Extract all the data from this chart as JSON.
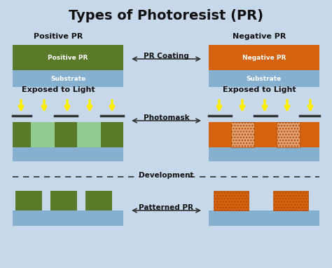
{
  "title": "Types of Photoresist (PR)",
  "background_color": "#c8d8eb",
  "title_fontsize": 14,
  "pos_pr_color": "#5a7a2a",
  "neg_pr_color": "#d4620e",
  "substrate_color": "#85b0d0",
  "exposed_pos_color": "#90cc90",
  "exposed_neg_color": "#e0a070",
  "photomask_color": "#333333",
  "arrow_color": "#333333",
  "yellow_color": "#ffee00",
  "label_color": "#111111",
  "white": "#ffffff",
  "section_labels": {
    "positive": "Positive PR",
    "negative": "Negative PR",
    "pr_coating": "PR Coating",
    "exposed_light": "Exposed to Light",
    "photomask": "Photomask",
    "development": "Development",
    "patterned_pr": "Patterned PR"
  }
}
